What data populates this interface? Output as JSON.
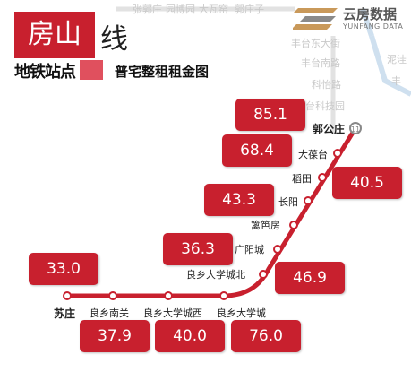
{
  "title": {
    "line_name": "房山",
    "line_suffix": "线",
    "subtitle_left": "地铁站点",
    "subtitle_right": "普宅整租租金图"
  },
  "logo": {
    "name": "云房数据",
    "sub": "YUNFANG DATA"
  },
  "background_stations": [
    "张郭庄",
    "园博园",
    "大瓦窑",
    "郭庄子",
    "丰台东大街",
    "丰台南路",
    "科怡路",
    "丰台科技园",
    "泥洼",
    "丰"
  ],
  "stations": [
    {
      "name": "苏庄",
      "price": "33.0"
    },
    {
      "name": "良乡南关",
      "price": "37.9"
    },
    {
      "name": "良乡大学城西",
      "price": "40.0"
    },
    {
      "name": "良乡大学城",
      "price": "76.0"
    },
    {
      "name": "良乡大学城北",
      "price": "46.9"
    },
    {
      "name": "广阳城",
      "price": "36.3"
    },
    {
      "name": "篱笆房",
      "price": ""
    },
    {
      "name": "长阳",
      "price": "43.3"
    },
    {
      "name": "稻田",
      "price": "40.5"
    },
    {
      "name": "大葆台",
      "price": "68.4"
    },
    {
      "name": "郭公庄",
      "price": "85.1"
    }
  ],
  "colors": {
    "line": "#c8202e",
    "price_box": "#c8202e",
    "background_line": "#cfe0ef"
  }
}
